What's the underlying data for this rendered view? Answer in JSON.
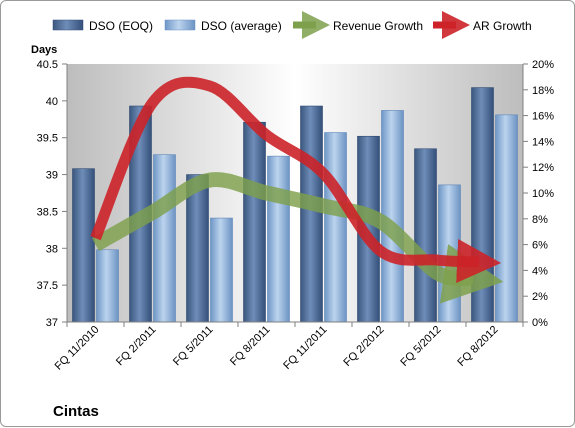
{
  "chart_data": {
    "type": "bar",
    "title": "Cintas",
    "ylabel_left": "Days",
    "categories": [
      "FQ 11/2010",
      "FQ 2/2011",
      "FQ 5/2011",
      "FQ 8/2011",
      "FQ 11/2011",
      "FQ 2/2012",
      "FQ 5/2012",
      "FQ 8/2012"
    ],
    "left_axis": {
      "min": 37,
      "max": 40.5,
      "ticks": [
        "37",
        "37.5",
        "38",
        "38.5",
        "39",
        "39.5",
        "40",
        "40.5"
      ]
    },
    "right_axis": {
      "min": 0,
      "max": 20,
      "ticks": [
        "0%",
        "2%",
        "4%",
        "6%",
        "8%",
        "10%",
        "12%",
        "14%",
        "16%",
        "18%",
        "20%"
      ]
    },
    "series": [
      {
        "name": "DSO (EOQ)",
        "type": "bar",
        "axis": "left",
        "color": "#4a6a95",
        "values": [
          39.08,
          39.93,
          39.0,
          39.71,
          39.93,
          39.52,
          39.35,
          40.18
        ]
      },
      {
        "name": "DSO (average)",
        "type": "bar",
        "axis": "left",
        "color": "#7fa6d4",
        "values": [
          37.98,
          39.27,
          38.41,
          39.25,
          39.57,
          39.87,
          38.86,
          39.81
        ]
      },
      {
        "name": "Revenue Growth",
        "type": "line",
        "axis": "right",
        "color": "#7ea04c",
        "values": [
          6.0,
          8.5,
          11.0,
          10.0,
          9.0,
          7.8,
          3.8,
          3.2
        ]
      },
      {
        "name": "AR Growth",
        "type": "line",
        "axis": "right",
        "color": "#cc2228",
        "values": [
          6.5,
          17.0,
          18.3,
          14.5,
          11.5,
          5.5,
          4.8,
          4.6
        ]
      }
    ],
    "legend_position": "top",
    "grid": false
  }
}
